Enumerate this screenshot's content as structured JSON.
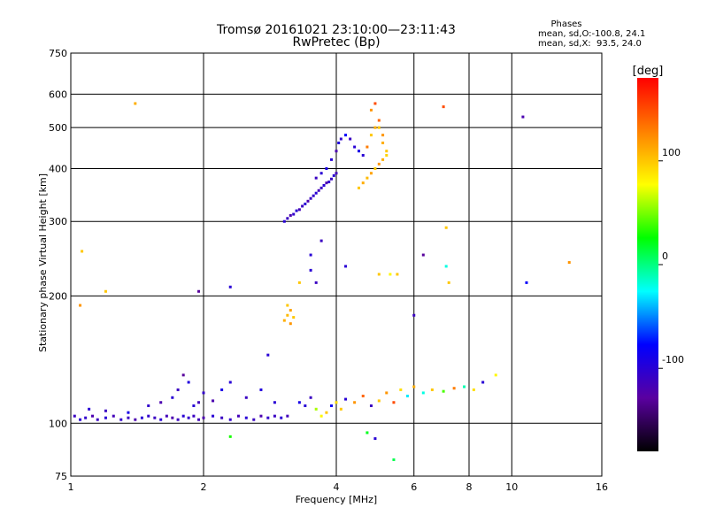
{
  "header": {
    "title": "Tromsø 20161021 23:10:00—23:11:43",
    "subtitle": "RwPretec (Bp)",
    "phases_heading": "Phases",
    "phases_o": "mean, sd,O:-100.8, 24.1",
    "phases_x": "mean, sd,X:  93.5, 24.0"
  },
  "chart_data": {
    "type": "scatter",
    "xlabel": "Frequency [MHz]",
    "ylabel": "Stationary phase Virtual Height [km]",
    "x_scale": "log",
    "y_scale": "log",
    "xlim": [
      1,
      16
    ],
    "ylim": [
      75,
      750
    ],
    "x_ticks": [
      1,
      2,
      4,
      6,
      8,
      10,
      16
    ],
    "x_tick_labels": [
      "1",
      "2",
      "4",
      "6",
      "8",
      "10",
      "16"
    ],
    "y_ticks": [
      75,
      100,
      200,
      300,
      400,
      500,
      600,
      750
    ],
    "y_tick_labels": [
      "75",
      "100",
      "200",
      "300",
      "400",
      "500",
      "600",
      "750"
    ],
    "grid": true,
    "colorbar": {
      "label": "[deg]",
      "range": [
        -180,
        180
      ],
      "ticks": [
        100,
        0,
        -100
      ],
      "tick_labels": [
        "100",
        "0",
        "-100"
      ],
      "colors": [
        "#000000",
        "#5a00a0",
        "#0000ff",
        "#00ffff",
        "#00ff00",
        "#ffff00",
        "#ff8000",
        "#ff0000"
      ]
    },
    "series": [
      {
        "x": [
          1.02,
          1.05,
          1.08,
          1.12,
          1.15,
          1.2,
          1.25,
          1.3,
          1.35,
          1.4,
          1.45,
          1.5,
          1.55,
          1.6,
          1.65,
          1.7,
          1.75,
          1.8,
          1.85,
          1.9,
          1.95,
          2.0,
          2.1,
          2.2,
          2.3,
          2.4,
          2.5,
          2.6,
          2.7,
          2.8,
          2.9,
          3.0,
          3.1
        ],
        "y": [
          104,
          102,
          103,
          104,
          102,
          103,
          104,
          102,
          103,
          102,
          103,
          104,
          103,
          102,
          104,
          103,
          102,
          104,
          103,
          104,
          102,
          103,
          104,
          103,
          102,
          104,
          103,
          102,
          104,
          103,
          104,
          103,
          104
        ],
        "phase": [
          -110,
          -100,
          -105,
          -120,
          -110,
          -100,
          -115,
          -105,
          -110,
          -120,
          -100,
          -105,
          -110,
          -100,
          -115,
          -120,
          -110,
          -100,
          -105,
          -110,
          -115,
          -120,
          -100,
          -110,
          -105,
          -115,
          -100,
          -110,
          -120,
          -105,
          -110,
          -100,
          -115
        ]
      },
      {
        "x": [
          1.1,
          1.2,
          1.35,
          1.5,
          1.6,
          1.7,
          1.75,
          1.8,
          1.85,
          1.9,
          1.95,
          2.0,
          2.1,
          2.2,
          2.3,
          2.5,
          2.7,
          2.9
        ],
        "y": [
          108,
          107,
          106,
          110,
          112,
          115,
          120,
          130,
          125,
          110,
          112,
          118,
          113,
          120,
          125,
          115,
          120,
          112
        ],
        "phase": [
          -100,
          -110,
          -90,
          -105,
          -120,
          -100,
          -110,
          -130,
          -95,
          -100,
          -115,
          -105,
          -120,
          -90,
          -100,
          -110,
          -95,
          -100
        ]
      },
      {
        "x": [
          3.3,
          3.4,
          3.5,
          3.6,
          3.7,
          3.8,
          3.9,
          4.0,
          4.1,
          4.2,
          4.4,
          4.6,
          4.8,
          5.0,
          5.2,
          5.4,
          5.6,
          5.8,
          6.0,
          6.3,
          6.6,
          7.0,
          7.4,
          7.8,
          8.2,
          8.6,
          9.2
        ],
        "y": [
          112,
          110,
          115,
          108,
          104,
          106,
          110,
          112,
          108,
          114,
          112,
          116,
          110,
          113,
          118,
          112,
          120,
          116,
          122,
          118,
          120,
          119,
          121,
          122,
          120,
          125,
          130
        ],
        "phase": [
          -90,
          -100,
          -110,
          60,
          80,
          100,
          -80,
          90,
          100,
          -100,
          120,
          140,
          -110,
          100,
          120,
          150,
          90,
          -30,
          110,
          -20,
          100,
          40,
          130,
          -10,
          90,
          -100,
          80
        ]
      },
      {
        "x": [
          3.05,
          3.1,
          3.15,
          3.2,
          3.25,
          3.3,
          3.35,
          3.4,
          3.45,
          3.5,
          3.55,
          3.6,
          3.65,
          3.7,
          3.75,
          3.8,
          3.85,
          3.9,
          3.95,
          4.0
        ],
        "y": [
          300,
          305,
          310,
          312,
          318,
          320,
          326,
          330,
          335,
          340,
          345,
          350,
          355,
          360,
          365,
          370,
          372,
          378,
          385,
          390
        ],
        "phase": [
          -100,
          -110,
          -120,
          -105,
          -100,
          -115,
          -110,
          -100,
          -120,
          -110,
          -105,
          -100,
          -115,
          -110,
          -100,
          -120,
          -105,
          -110,
          -100,
          -115
        ]
      },
      {
        "x": [
          3.6,
          3.7,
          3.8,
          3.9,
          4.0,
          4.05,
          4.1,
          4.2,
          4.3,
          4.4,
          4.5,
          4.6
        ],
        "y": [
          380,
          390,
          400,
          420,
          440,
          460,
          470,
          480,
          470,
          450,
          440,
          430
        ],
        "phase": [
          -110,
          -100,
          -90,
          -100,
          -120,
          -95,
          -105,
          -80,
          -110,
          -100,
          -90,
          -100
        ]
      },
      {
        "x": [
          4.5,
          4.6,
          4.7,
          4.8,
          4.9,
          5.0,
          5.1,
          5.2,
          4.7,
          4.8,
          4.9,
          5.0,
          5.1,
          5.2,
          4.8,
          4.9,
          5.0,
          5.1
        ],
        "y": [
          360,
          370,
          380,
          390,
          400,
          410,
          420,
          430,
          450,
          480,
          500,
          520,
          480,
          440,
          550,
          570,
          500,
          460
        ],
        "phase": [
          100,
          110,
          105,
          115,
          100,
          120,
          110,
          95,
          130,
          100,
          110,
          140,
          120,
          100,
          120,
          150,
          100,
          110
        ]
      },
      {
        "x": [
          3.05,
          3.1,
          3.15,
          3.2,
          3.1,
          3.15
        ],
        "y": [
          175,
          180,
          185,
          178,
          190,
          172
        ],
        "phase": [
          110,
          105,
          115,
          100,
          100,
          120
        ]
      },
      {
        "x": [
          1.4,
          1.06,
          1.05,
          1.2,
          1.95,
          2.3,
          3.7,
          3.5,
          3.6,
          3.3,
          3.5,
          4.2,
          5.0,
          5.3,
          5.5,
          6.3,
          7.1,
          7.2,
          7.1,
          7.0,
          10.6,
          10.8,
          13.5,
          6.0,
          4.7,
          4.9,
          5.4,
          2.3,
          2.8
        ],
        "y": [
          570,
          255,
          190,
          205,
          205,
          210,
          270,
          250,
          215,
          215,
          230,
          235,
          225,
          225,
          225,
          250,
          235,
          215,
          290,
          560,
          530,
          215,
          240,
          180,
          95,
          92,
          82,
          93,
          145
        ],
        "phase": [
          110,
          100,
          120,
          100,
          -130,
          -100,
          -110,
          -100,
          -110,
          100,
          -100,
          -100,
          100,
          80,
          100,
          -130,
          -20,
          100,
          100,
          150,
          -120,
          -80,
          120,
          -110,
          20,
          -100,
          10,
          30,
          -100
        ]
      }
    ]
  }
}
